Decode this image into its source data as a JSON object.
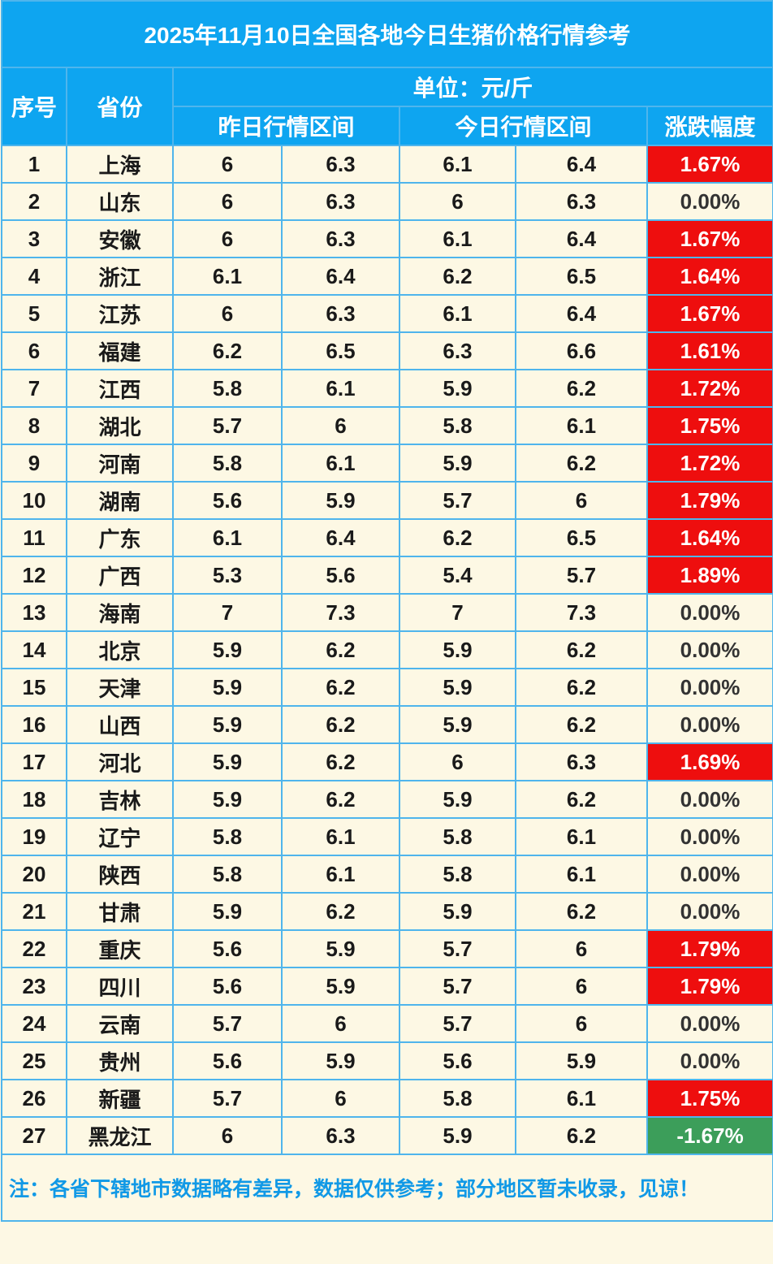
{
  "title": "2025年11月10日全国各地今日生猪价格行情参考",
  "header": {
    "index": "序号",
    "province": "省份",
    "unit": "单位：元/斤",
    "yesterday": "昨日行情区间",
    "today": "今日行情区间",
    "change": "涨跌幅度"
  },
  "colors": {
    "header_bg": "#0ea5f0",
    "row_bg": "#fdf8e4",
    "up": "#ee0e0e",
    "down": "#3c9e5a",
    "note": "#1199e6"
  },
  "rows": [
    {
      "no": "1",
      "province": "上海",
      "y_low": "6",
      "y_high": "6.3",
      "t_low": "6.1",
      "t_high": "6.4",
      "change": "1.67%",
      "trend": "up"
    },
    {
      "no": "2",
      "province": "山东",
      "y_low": "6",
      "y_high": "6.3",
      "t_low": "6",
      "t_high": "6.3",
      "change": "0.00%",
      "trend": "flat"
    },
    {
      "no": "3",
      "province": "安徽",
      "y_low": "6",
      "y_high": "6.3",
      "t_low": "6.1",
      "t_high": "6.4",
      "change": "1.67%",
      "trend": "up"
    },
    {
      "no": "4",
      "province": "浙江",
      "y_low": "6.1",
      "y_high": "6.4",
      "t_low": "6.2",
      "t_high": "6.5",
      "change": "1.64%",
      "trend": "up"
    },
    {
      "no": "5",
      "province": "江苏",
      "y_low": "6",
      "y_high": "6.3",
      "t_low": "6.1",
      "t_high": "6.4",
      "change": "1.67%",
      "trend": "up"
    },
    {
      "no": "6",
      "province": "福建",
      "y_low": "6.2",
      "y_high": "6.5",
      "t_low": "6.3",
      "t_high": "6.6",
      "change": "1.61%",
      "trend": "up"
    },
    {
      "no": "7",
      "province": "江西",
      "y_low": "5.8",
      "y_high": "6.1",
      "t_low": "5.9",
      "t_high": "6.2",
      "change": "1.72%",
      "trend": "up"
    },
    {
      "no": "8",
      "province": "湖北",
      "y_low": "5.7",
      "y_high": "6",
      "t_low": "5.8",
      "t_high": "6.1",
      "change": "1.75%",
      "trend": "up"
    },
    {
      "no": "9",
      "province": "河南",
      "y_low": "5.8",
      "y_high": "6.1",
      "t_low": "5.9",
      "t_high": "6.2",
      "change": "1.72%",
      "trend": "up"
    },
    {
      "no": "10",
      "province": "湖南",
      "y_low": "5.6",
      "y_high": "5.9",
      "t_low": "5.7",
      "t_high": "6",
      "change": "1.79%",
      "trend": "up"
    },
    {
      "no": "11",
      "province": "广东",
      "y_low": "6.1",
      "y_high": "6.4",
      "t_low": "6.2",
      "t_high": "6.5",
      "change": "1.64%",
      "trend": "up"
    },
    {
      "no": "12",
      "province": "广西",
      "y_low": "5.3",
      "y_high": "5.6",
      "t_low": "5.4",
      "t_high": "5.7",
      "change": "1.89%",
      "trend": "up"
    },
    {
      "no": "13",
      "province": "海南",
      "y_low": "7",
      "y_high": "7.3",
      "t_low": "7",
      "t_high": "7.3",
      "change": "0.00%",
      "trend": "flat"
    },
    {
      "no": "14",
      "province": "北京",
      "y_low": "5.9",
      "y_high": "6.2",
      "t_low": "5.9",
      "t_high": "6.2",
      "change": "0.00%",
      "trend": "flat"
    },
    {
      "no": "15",
      "province": "天津",
      "y_low": "5.9",
      "y_high": "6.2",
      "t_low": "5.9",
      "t_high": "6.2",
      "change": "0.00%",
      "trend": "flat"
    },
    {
      "no": "16",
      "province": "山西",
      "y_low": "5.9",
      "y_high": "6.2",
      "t_low": "5.9",
      "t_high": "6.2",
      "change": "0.00%",
      "trend": "flat"
    },
    {
      "no": "17",
      "province": "河北",
      "y_low": "5.9",
      "y_high": "6.2",
      "t_low": "6",
      "t_high": "6.3",
      "change": "1.69%",
      "trend": "up"
    },
    {
      "no": "18",
      "province": "吉林",
      "y_low": "5.9",
      "y_high": "6.2",
      "t_low": "5.9",
      "t_high": "6.2",
      "change": "0.00%",
      "trend": "flat"
    },
    {
      "no": "19",
      "province": "辽宁",
      "y_low": "5.8",
      "y_high": "6.1",
      "t_low": "5.8",
      "t_high": "6.1",
      "change": "0.00%",
      "trend": "flat"
    },
    {
      "no": "20",
      "province": "陕西",
      "y_low": "5.8",
      "y_high": "6.1",
      "t_low": "5.8",
      "t_high": "6.1",
      "change": "0.00%",
      "trend": "flat"
    },
    {
      "no": "21",
      "province": "甘肃",
      "y_low": "5.9",
      "y_high": "6.2",
      "t_low": "5.9",
      "t_high": "6.2",
      "change": "0.00%",
      "trend": "flat"
    },
    {
      "no": "22",
      "province": "重庆",
      "y_low": "5.6",
      "y_high": "5.9",
      "t_low": "5.7",
      "t_high": "6",
      "change": "1.79%",
      "trend": "up"
    },
    {
      "no": "23",
      "province": "四川",
      "y_low": "5.6",
      "y_high": "5.9",
      "t_low": "5.7",
      "t_high": "6",
      "change": "1.79%",
      "trend": "up"
    },
    {
      "no": "24",
      "province": "云南",
      "y_low": "5.7",
      "y_high": "6",
      "t_low": "5.7",
      "t_high": "6",
      "change": "0.00%",
      "trend": "flat"
    },
    {
      "no": "25",
      "province": "贵州",
      "y_low": "5.6",
      "y_high": "5.9",
      "t_low": "5.6",
      "t_high": "5.9",
      "change": "0.00%",
      "trend": "flat"
    },
    {
      "no": "26",
      "province": "新疆",
      "y_low": "5.7",
      "y_high": "6",
      "t_low": "5.8",
      "t_high": "6.1",
      "change": "1.75%",
      "trend": "up"
    },
    {
      "no": "27",
      "province": "黑龙江",
      "y_low": "6",
      "y_high": "6.3",
      "t_low": "5.9",
      "t_high": "6.2",
      "change": "-1.67%",
      "trend": "down"
    }
  ],
  "note": "注：各省下辖地市数据略有差异，数据仅供参考；部分地区暂未收录，见谅！"
}
